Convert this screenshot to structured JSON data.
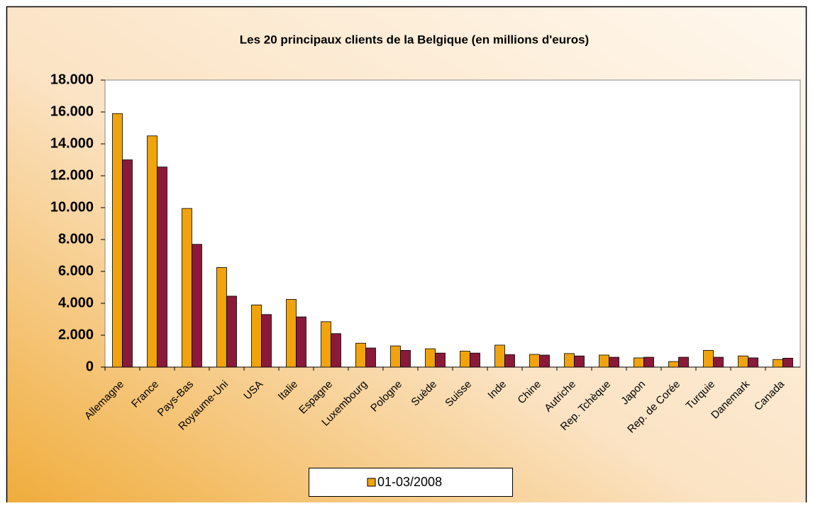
{
  "chart_data": {
    "type": "bar",
    "title": "Les 20 principaux clients de la Belgique (en millions d'euros)",
    "categories": [
      "Allemagne",
      "France",
      "Pays-Bas",
      "Royaume-Uni",
      "USA",
      "Italie",
      "Espagne",
      "Luxembourg",
      "Pologne",
      "Suède",
      "Suisse",
      "Inde",
      "Chine",
      "Autriche",
      "Rep. Tchèque",
      "Japon",
      "Rep. de Corée",
      "Turquie",
      "Danemark",
      "Canada"
    ],
    "series": [
      {
        "name": "01-03/2008",
        "color": "#f0a30a",
        "values": [
          15900,
          14500,
          9950,
          6250,
          3900,
          4250,
          2850,
          1500,
          1330,
          1150,
          1000,
          1380,
          800,
          850,
          755,
          580,
          350,
          1050,
          700,
          480
        ]
      },
      {
        "color": "#8b1a3a",
        "values": [
          13000,
          12550,
          7700,
          4450,
          3300,
          3150,
          2100,
          1200,
          1050,
          880,
          880,
          780,
          755,
          700,
          620,
          620,
          620,
          620,
          580,
          560
        ]
      }
    ],
    "ylim": [
      0,
      18000
    ],
    "yticks": [
      0,
      {
        "value": 2000,
        "label": "2.000"
      },
      {
        "value": 4000,
        "label": "4.000"
      },
      {
        "value": 6000,
        "label": "6.000"
      },
      {
        "value": 8000,
        "label": "8.000"
      },
      {
        "value": 10000,
        "label": "10.000"
      },
      {
        "value": 12000,
        "label": "12.000"
      },
      {
        "value": 14000,
        "label": "14.000"
      },
      {
        "value": 16000,
        "label": "16.000"
      },
      {
        "value": 18000,
        "label": "18.000"
      }
    ],
    "grid": false
  }
}
